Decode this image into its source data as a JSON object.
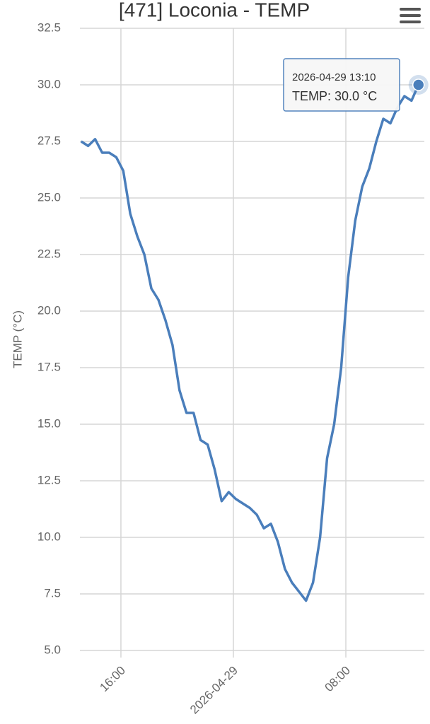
{
  "chart_data": {
    "type": "line",
    "title": "[471] Loconia - TEMP",
    "y_label": "TEMP (°C)",
    "x": [
      "2026-04-28 13:10",
      "2026-04-28 13:40",
      "2026-04-28 14:10",
      "2026-04-28 14:40",
      "2026-04-28 15:10",
      "2026-04-28 15:40",
      "2026-04-28 16:10",
      "2026-04-28 16:40",
      "2026-04-28 17:10",
      "2026-04-28 17:40",
      "2026-04-28 18:10",
      "2026-04-28 18:40",
      "2026-04-28 19:10",
      "2026-04-28 19:40",
      "2026-04-28 20:10",
      "2026-04-28 20:40",
      "2026-04-28 21:10",
      "2026-04-28 21:40",
      "2026-04-28 22:10",
      "2026-04-28 22:40",
      "2026-04-28 23:10",
      "2026-04-28 23:40",
      "2026-04-29 00:10",
      "2026-04-29 00:40",
      "2026-04-29 01:10",
      "2026-04-29 01:40",
      "2026-04-29 02:10",
      "2026-04-29 02:40",
      "2026-04-29 03:10",
      "2026-04-29 03:40",
      "2026-04-29 04:10",
      "2026-04-29 04:40",
      "2026-04-29 05:10",
      "2026-04-29 05:40",
      "2026-04-29 06:10",
      "2026-04-29 06:40",
      "2026-04-29 07:10",
      "2026-04-29 07:40",
      "2026-04-29 08:10",
      "2026-04-29 08:40",
      "2026-04-29 09:10",
      "2026-04-29 09:40",
      "2026-04-29 10:10",
      "2026-04-29 10:40",
      "2026-04-29 11:10",
      "2026-04-29 11:40",
      "2026-04-29 12:10",
      "2026-04-29 12:40",
      "2026-04-29 13:10"
    ],
    "series": [
      {
        "color": "#4a7ebb",
        "values": [
          27.5,
          27.3,
          27.6,
          27.0,
          27.0,
          26.8,
          26.2,
          24.3,
          23.3,
          22.5,
          21.0,
          20.5,
          19.6,
          18.5,
          16.5,
          15.5,
          15.5,
          14.3,
          14.1,
          13.0,
          11.6,
          12.0,
          11.7,
          11.5,
          11.3,
          11.0,
          10.4,
          10.6,
          9.8,
          8.6,
          8.0,
          7.6,
          7.2,
          8.0,
          10.0,
          13.5,
          15.0,
          17.5,
          21.5,
          24.0,
          25.5,
          26.3,
          27.5,
          28.5,
          28.3,
          29.0,
          29.5,
          29.3,
          30.0
        ]
      }
    ],
    "xlim": [
      "2026-04-28 13:05",
      "2026-04-29 13:35"
    ],
    "xticks": [
      {
        "value": "2026-04-28 16:00",
        "label": "16:00"
      },
      {
        "value": "2026-04-29 00:00",
        "label": "2026-04-29"
      },
      {
        "value": "2026-04-29 08:00",
        "label": "08:00"
      }
    ],
    "ylim": [
      5,
      32.5
    ],
    "yticks": [
      {
        "value": 5,
        "label": "5.0"
      },
      7.5,
      {
        "value": 10,
        "label": "10.0"
      },
      12.5,
      {
        "value": 15,
        "label": "15.0"
      },
      17.5,
      {
        "value": 20,
        "label": "20.0"
      },
      22.5,
      {
        "value": 25,
        "label": "25.0"
      },
      27.5,
      {
        "value": 30,
        "label": "30.0"
      },
      32.5
    ],
    "grid": true,
    "tooltip": {
      "title": "2026-04-29 13:10",
      "text": "TEMP: 30.0 °C",
      "point": 48
    }
  }
}
